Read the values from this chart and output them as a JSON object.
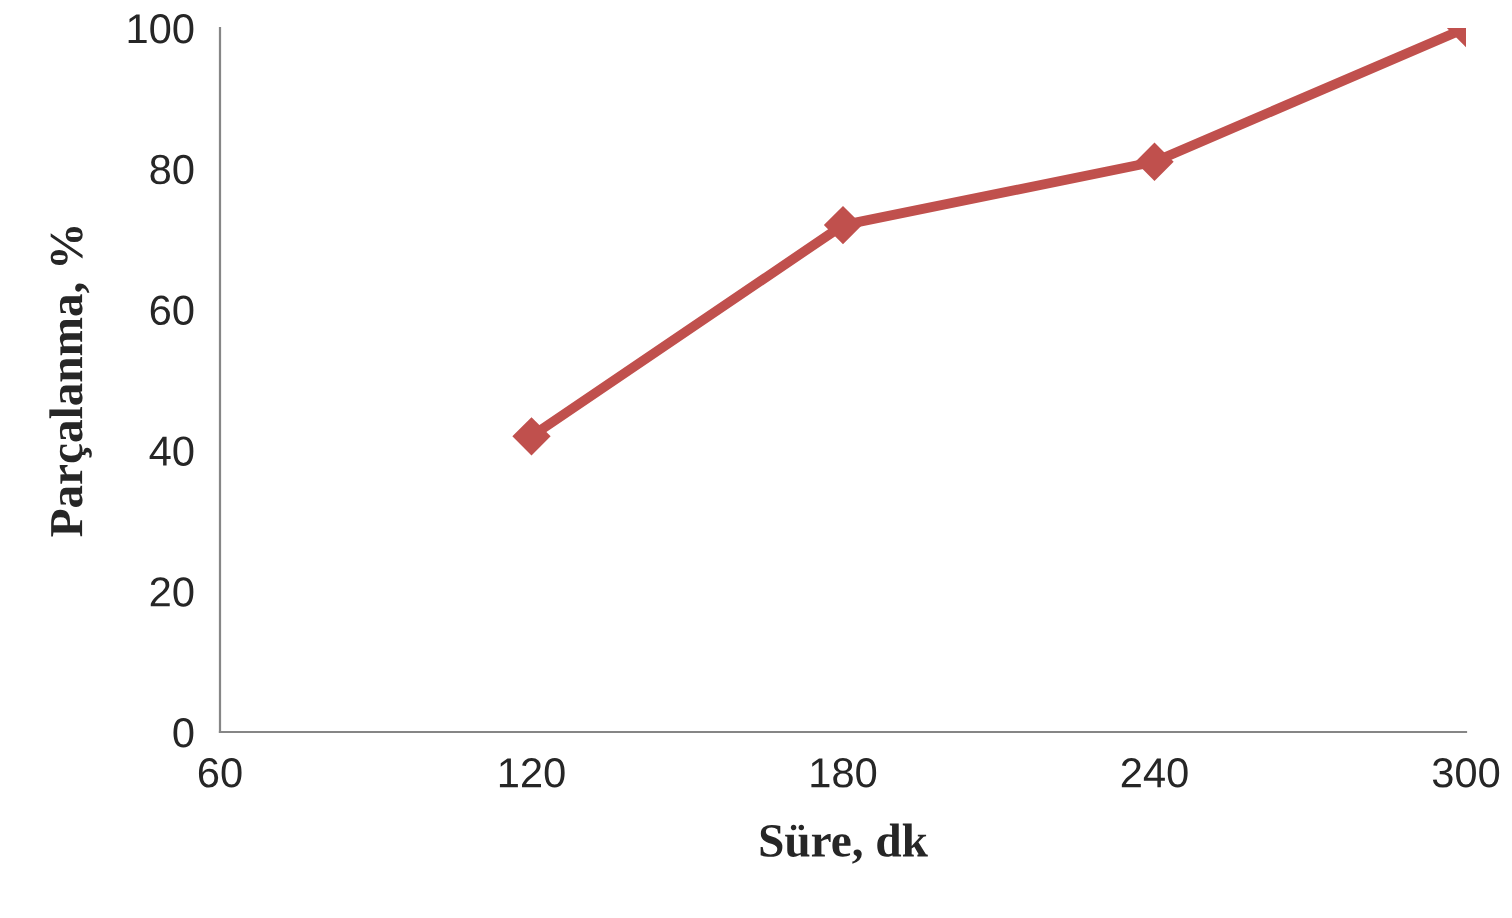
{
  "chart_data": {
    "type": "line",
    "xlabel": "Süre, dk",
    "ylabel": "Parçalanma, %",
    "x": [
      120,
      180,
      240,
      300
    ],
    "series": [
      {
        "color": "#c0504d",
        "values": [
          42,
          72,
          81,
          100
        ]
      }
    ],
    "xlim": [
      60,
      300
    ],
    "xticks": [
      60,
      120,
      180,
      240,
      300
    ],
    "ylim": [
      0,
      100
    ],
    "yticks": [
      0,
      20,
      40,
      60,
      80,
      100
    ],
    "marker": "diamond",
    "line_style": "solid",
    "grid": false,
    "legend": false
  }
}
